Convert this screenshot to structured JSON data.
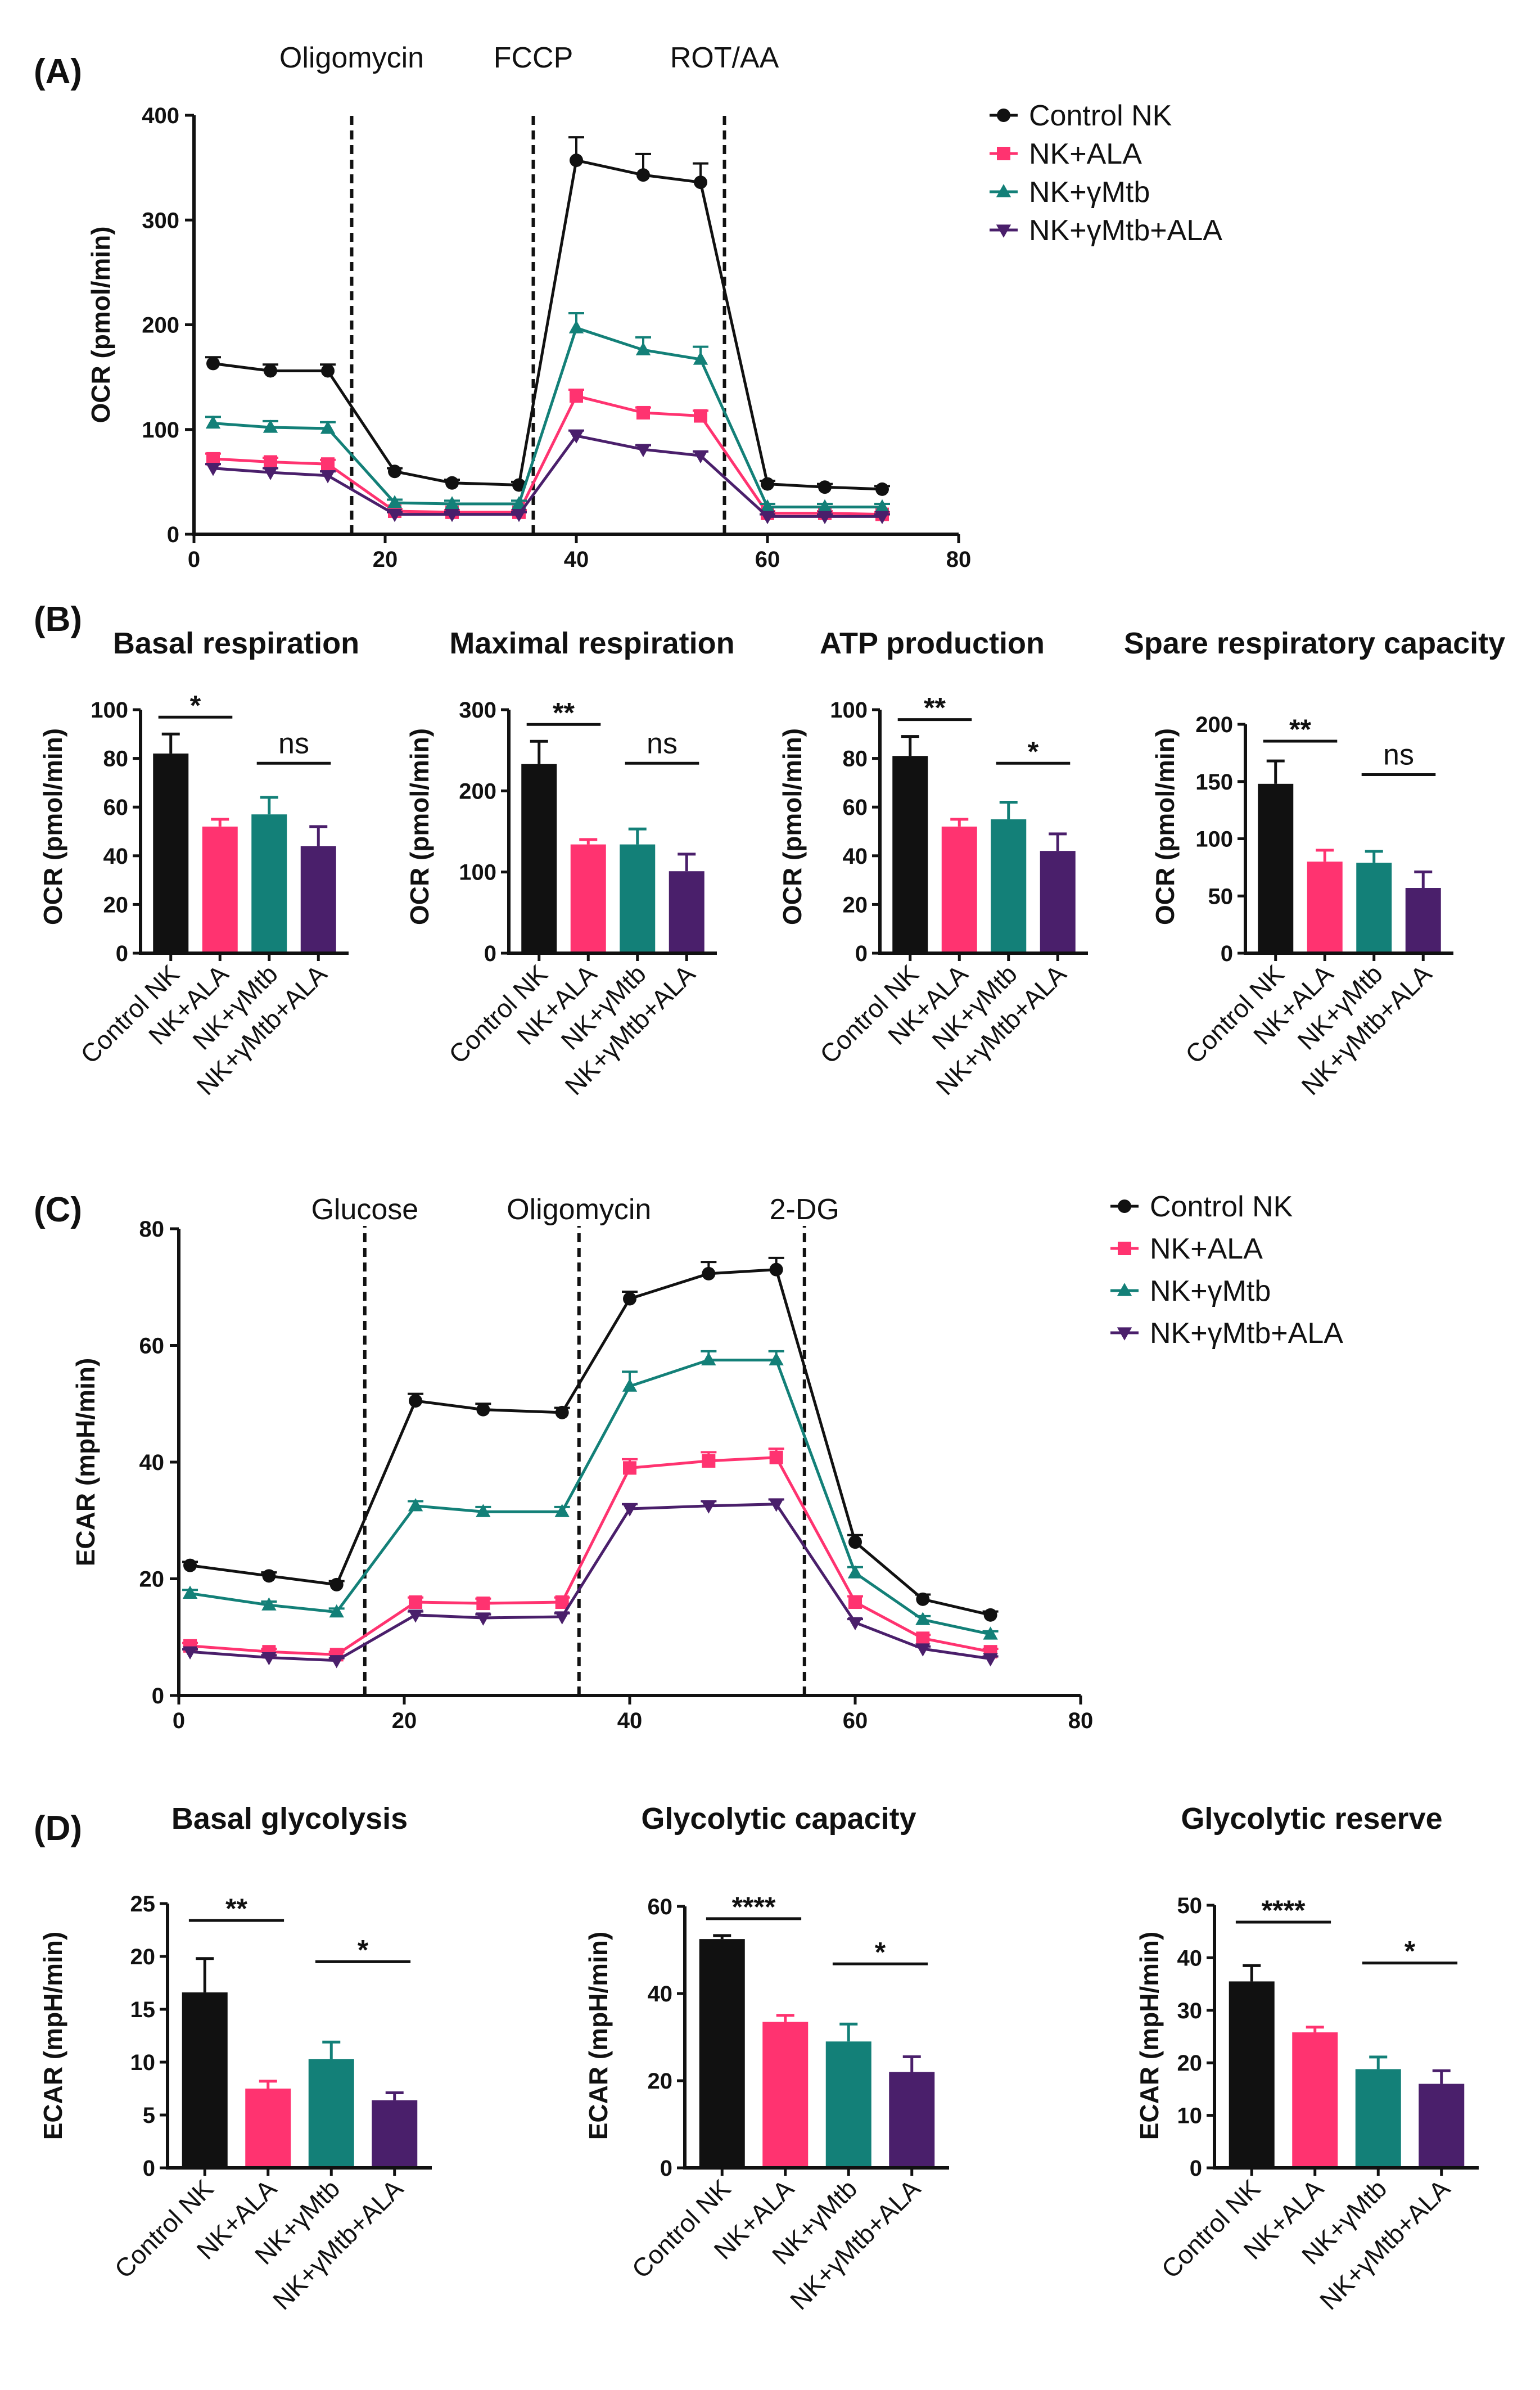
{
  "colors": {
    "control": "#111111",
    "ala": "#ff3370",
    "mtb": "#138078",
    "mtb_ala": "#4a1f6b"
  },
  "chart_data": [
    {
      "id": "A",
      "panel_label": "(A)",
      "type": "line",
      "title": "",
      "xlabel": "",
      "ylabel": "OCR (pmol/min)",
      "xlim": [
        0,
        80
      ],
      "ylim": [
        0,
        400
      ],
      "xticks": [
        0,
        20,
        40,
        60,
        80
      ],
      "yticks": [
        0,
        100,
        200,
        300,
        400
      ],
      "x": [
        2,
        8,
        14,
        21,
        27,
        34,
        40,
        47,
        53,
        60,
        66,
        72
      ],
      "injections": [
        {
          "x": 16.5,
          "label": "Oligomycin"
        },
        {
          "x": 35.5,
          "label": "FCCP"
        },
        {
          "x": 55.5,
          "label": "ROT/AA"
        }
      ],
      "series": [
        {
          "name": "Control NK",
          "key": "control",
          "marker": "circle",
          "values": [
            163,
            156,
            156,
            60,
            49,
            47,
            357,
            343,
            336,
            48,
            45,
            43
          ],
          "err": [
            6,
            6,
            6,
            3,
            3,
            3,
            22,
            20,
            18,
            3,
            3,
            3
          ]
        },
        {
          "name": "NK+ALA",
          "key": "ala",
          "marker": "square",
          "values": [
            72,
            69,
            67,
            22,
            21,
            21,
            132,
            116,
            113,
            20,
            20,
            19
          ],
          "err": [
            5,
            4,
            4,
            2,
            2,
            2,
            6,
            5,
            5,
            2,
            2,
            2
          ]
        },
        {
          "name": "NK+γMtb",
          "key": "mtb",
          "marker": "triangle",
          "values": [
            106,
            102,
            101,
            30,
            29,
            29,
            197,
            176,
            167,
            26,
            26,
            26
          ],
          "err": [
            6,
            6,
            6,
            3,
            3,
            3,
            14,
            12,
            12,
            3,
            3,
            3
          ]
        },
        {
          "name": "NK+γMtb+ALA",
          "key": "mtb_ala",
          "marker": "triangle-down",
          "values": [
            63,
            59,
            56,
            19,
            19,
            19,
            94,
            81,
            75,
            17,
            17,
            17
          ],
          "err": [
            4,
            4,
            4,
            2,
            2,
            2,
            5,
            4,
            4,
            2,
            2,
            2
          ]
        }
      ]
    },
    {
      "id": "B1",
      "panel_label": "(B)",
      "type": "bar",
      "title": "Basal respiration",
      "ylabel": "OCR (pmol/min)",
      "ylim": [
        0,
        100
      ],
      "yticks": [
        0,
        20,
        40,
        60,
        80,
        100
      ],
      "categories": [
        "Control NK",
        "NK+ALA",
        "NK+γMtb",
        "NK+γMtb+ALA"
      ],
      "values": [
        82,
        52,
        57,
        44
      ],
      "err": [
        8,
        3,
        7,
        8
      ],
      "significance": [
        {
          "from": 0,
          "to": 1,
          "label": "*"
        },
        {
          "from": 2,
          "to": 3,
          "label": "ns"
        }
      ]
    },
    {
      "id": "B2",
      "panel_label": "",
      "type": "bar",
      "title": "Maximal respiration",
      "ylabel": "OCR (pmol/min)",
      "ylim": [
        0,
        300
      ],
      "yticks": [
        0,
        100,
        200,
        300
      ],
      "categories": [
        "Control NK",
        "NK+ALA",
        "NK+γMtb",
        "NK+γMtb+ALA"
      ],
      "values": [
        233,
        134,
        134,
        101
      ],
      "err": [
        28,
        6,
        19,
        21
      ],
      "significance": [
        {
          "from": 0,
          "to": 1,
          "label": "**"
        },
        {
          "from": 2,
          "to": 3,
          "label": "ns"
        }
      ]
    },
    {
      "id": "B3",
      "panel_label": "",
      "type": "bar",
      "title": "ATP production",
      "ylabel": "OCR (pmol/min)",
      "ylim": [
        0,
        100
      ],
      "yticks": [
        0,
        20,
        40,
        60,
        80,
        100
      ],
      "categories": [
        "Control NK",
        "NK+ALA",
        "NK+γMtb",
        "NK+γMtb+ALA"
      ],
      "values": [
        81,
        52,
        55,
        42
      ],
      "err": [
        8,
        3,
        7,
        7
      ],
      "significance": [
        {
          "from": 0,
          "to": 1,
          "label": "**"
        },
        {
          "from": 2,
          "to": 3,
          "label": "*"
        }
      ]
    },
    {
      "id": "B4",
      "panel_label": "",
      "type": "bar",
      "title": "Spare respiratory capacity",
      "ylabel": "OCR (pmol/min)",
      "ylim": [
        0,
        200
      ],
      "yticks": [
        0,
        50,
        100,
        150,
        200
      ],
      "categories": [
        "Control NK",
        "NK+ALA",
        "NK+γMtb",
        "NK+γMtb+ALA"
      ],
      "values": [
        148,
        80,
        79,
        57
      ],
      "err": [
        20,
        10,
        10,
        14
      ],
      "significance": [
        {
          "from": 0,
          "to": 1,
          "label": "**"
        },
        {
          "from": 2,
          "to": 3,
          "label": "ns"
        }
      ]
    },
    {
      "id": "C",
      "panel_label": "(C)",
      "type": "line",
      "title": "",
      "xlabel": "",
      "ylabel": "ECAR (mpH/min)",
      "xlim": [
        0,
        80
      ],
      "ylim": [
        0,
        80
      ],
      "xticks": [
        0,
        20,
        40,
        60,
        80
      ],
      "yticks": [
        0,
        20,
        40,
        60,
        80
      ],
      "x": [
        1,
        8,
        14,
        21,
        27,
        34,
        40,
        47,
        53,
        60,
        66,
        72
      ],
      "injections": [
        {
          "x": 16.5,
          "label": "Glucose"
        },
        {
          "x": 35.5,
          "label": "Oligomycin"
        },
        {
          "x": 55.5,
          "label": "2-DG"
        }
      ],
      "series": [
        {
          "name": "Control NK",
          "key": "control",
          "marker": "circle",
          "values": [
            22.3,
            20.5,
            19,
            50.5,
            49,
            48.5,
            68,
            72.3,
            73,
            26.3,
            16.5,
            13.8
          ],
          "err": [
            0.6,
            0.6,
            0.6,
            1.2,
            1,
            0.8,
            1.2,
            2,
            2,
            1.2,
            0.8,
            0.6
          ]
        },
        {
          "name": "NK+ALA",
          "key": "ala",
          "marker": "square",
          "values": [
            8.5,
            7.5,
            7,
            16,
            15.8,
            16,
            39,
            40.2,
            40.8,
            16,
            9.8,
            7.5
          ],
          "err": [
            0.5,
            0.5,
            0.5,
            0.8,
            0.8,
            0.8,
            1.5,
            1.5,
            1.5,
            1,
            0.6,
            0.5
          ]
        },
        {
          "name": "NK+γMtb",
          "key": "mtb",
          "marker": "triangle",
          "values": [
            17.5,
            15.5,
            14.3,
            32.5,
            31.5,
            31.5,
            53,
            57.5,
            57.5,
            21,
            13,
            10.5
          ],
          "err": [
            0.6,
            0.6,
            0.6,
            0.8,
            0.8,
            0.8,
            2.5,
            1.5,
            1.5,
            1,
            0.6,
            0.5
          ]
        },
        {
          "name": "NK+γMtb+ALA",
          "key": "mtb_ala",
          "marker": "triangle-down",
          "values": [
            7.5,
            6.5,
            6,
            13.8,
            13.3,
            13.5,
            32,
            32.5,
            32.8,
            12.5,
            8,
            6.3
          ],
          "err": [
            0.4,
            0.4,
            0.4,
            0.6,
            0.6,
            0.6,
            0.8,
            0.8,
            0.8,
            0.6,
            0.4,
            0.4
          ]
        }
      ]
    },
    {
      "id": "D1",
      "panel_label": "(D)",
      "type": "bar",
      "title": "Basal glycolysis",
      "ylabel": "ECAR (mpH/min)",
      "ylim": [
        0,
        25
      ],
      "yticks": [
        0,
        5,
        10,
        15,
        20,
        25
      ],
      "categories": [
        "Control NK",
        "NK+ALA",
        "NK+γMtb",
        "NK+γMtb+ALA"
      ],
      "values": [
        16.6,
        7.5,
        10.3,
        6.4
      ],
      "err": [
        3.2,
        0.7,
        1.6,
        0.7
      ],
      "significance": [
        {
          "from": 0,
          "to": 1,
          "label": "**"
        },
        {
          "from": 2,
          "to": 3,
          "label": "*"
        }
      ]
    },
    {
      "id": "D2",
      "panel_label": "",
      "type": "bar",
      "title": "Glycolytic capacity",
      "ylabel": "ECAR (mpH/min)",
      "ylim": [
        0,
        60
      ],
      "yticks": [
        0,
        20,
        40,
        60
      ],
      "categories": [
        "Control NK",
        "NK+ALA",
        "NK+γMtb",
        "NK+γMtb+ALA"
      ],
      "values": [
        52.5,
        33.5,
        29,
        22
      ],
      "err": [
        0.8,
        1.5,
        4,
        3.5
      ],
      "significance": [
        {
          "from": 0,
          "to": 1,
          "label": "****"
        },
        {
          "from": 2,
          "to": 3,
          "label": "*"
        }
      ]
    },
    {
      "id": "D3",
      "panel_label": "",
      "type": "bar",
      "title": "Glycolytic reserve",
      "ylabel": "ECAR (mpH/min)",
      "ylim": [
        0,
        50
      ],
      "yticks": [
        0,
        10,
        20,
        30,
        40,
        50
      ],
      "categories": [
        "Control NK",
        "NK+ALA",
        "NK+γMtb",
        "NK+γMtb+ALA"
      ],
      "values": [
        35.5,
        25.8,
        18.8,
        16
      ],
      "err": [
        3,
        1,
        2.3,
        2.5
      ],
      "significance": [
        {
          "from": 0,
          "to": 1,
          "label": "****"
        },
        {
          "from": 2,
          "to": 3,
          "label": "*"
        }
      ]
    }
  ]
}
